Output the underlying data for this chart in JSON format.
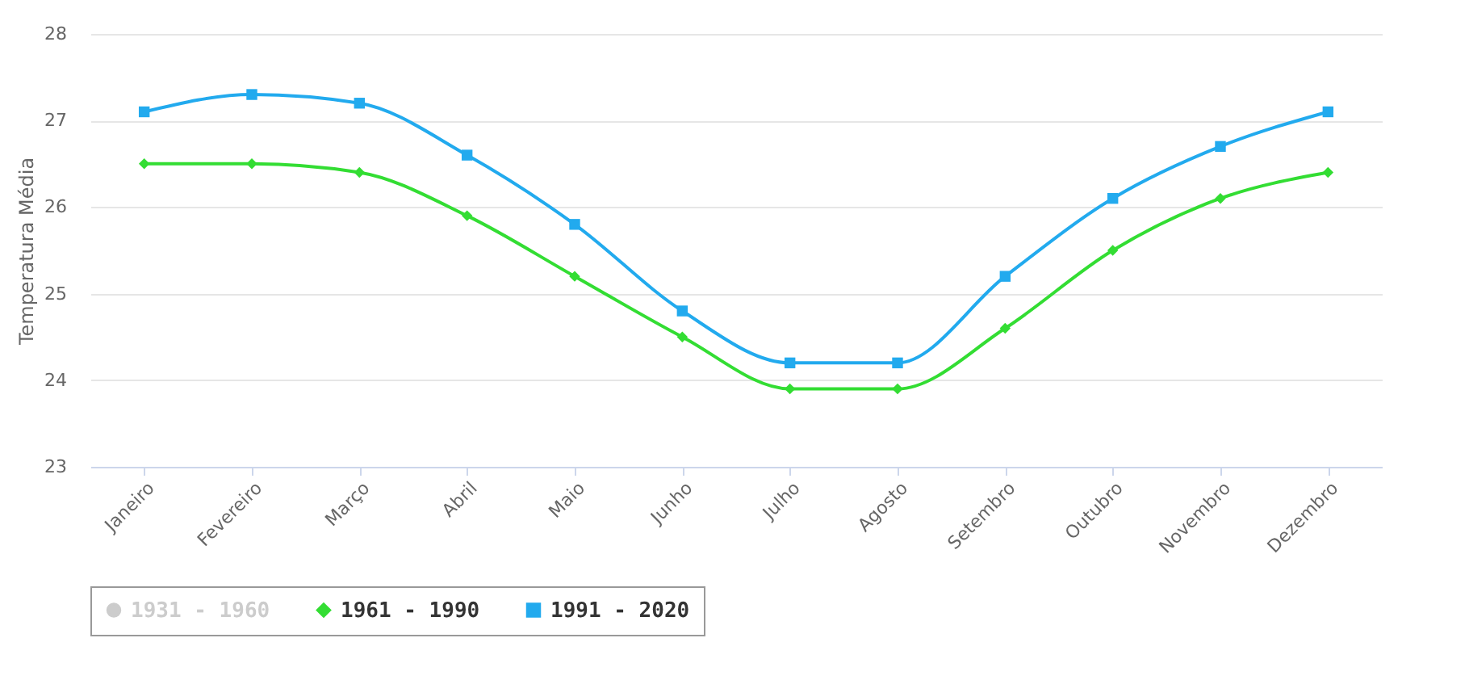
{
  "chart_data": {
    "type": "line",
    "ylabel": "Temperatura Média",
    "categories": [
      "Janeiro",
      "Fevereiro",
      "Março",
      "Abril",
      "Maio",
      "Junho",
      "Julho",
      "Agosto",
      "Setembro",
      "Outubro",
      "Novembro",
      "Dezembro"
    ],
    "series": [
      {
        "name": "1931 - 1960",
        "color": "#cccccc",
        "marker": "circle",
        "values": [
          null,
          null,
          null,
          null,
          null,
          null,
          null,
          null,
          null,
          null,
          null,
          null
        ]
      },
      {
        "name": "1961 - 1990",
        "color": "#33dd33",
        "marker": "diamond",
        "values": [
          26.5,
          26.5,
          26.4,
          25.9,
          25.2,
          24.5,
          23.9,
          23.9,
          24.6,
          25.5,
          26.1,
          26.4
        ]
      },
      {
        "name": "1991 - 2020",
        "color": "#22aaee",
        "marker": "square",
        "values": [
          27.1,
          27.3,
          27.2,
          26.6,
          25.8,
          24.8,
          24.2,
          24.2,
          25.2,
          26.1,
          26.7,
          27.1
        ]
      }
    ],
    "ylim": [
      23,
      28
    ],
    "yticks": [
      23,
      24,
      25,
      26,
      27,
      28
    ],
    "grid": "y",
    "legend": "bottom",
    "line_style": "solid"
  }
}
